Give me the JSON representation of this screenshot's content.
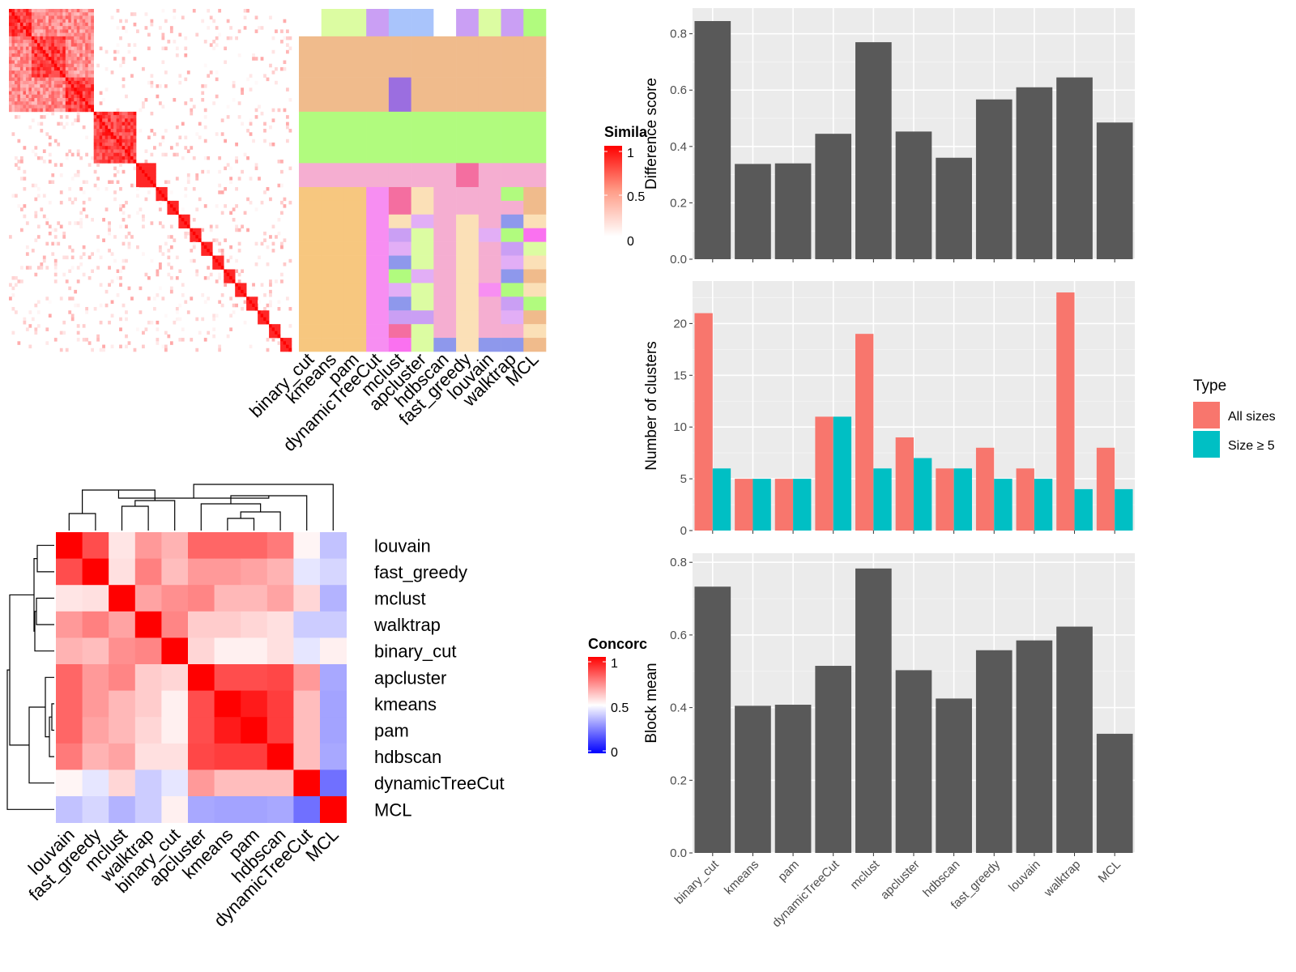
{
  "methods": [
    "binary_cut",
    "kmeans",
    "pam",
    "dynamicTreeCut",
    "mclust",
    "apcluster",
    "hdbscan",
    "fast_greedy",
    "louvain",
    "walktrap",
    "MCL"
  ],
  "similarity_heatmap": {
    "legend_title": "Simila",
    "legend_ticks": [
      "1",
      "0.5",
      "0"
    ],
    "colors": {
      "high": "#ff0000",
      "low": "#ffffff"
    },
    "column_labels": [
      "binary_cut",
      "kmeans",
      "pam",
      "dynamicTreeCut",
      "mclust",
      "apcluster",
      "hdbscan",
      "fast_greedy",
      "louvain",
      "walktrap",
      "MCL"
    ],
    "cluster_palette": [
      "#ffffff",
      "#f0bb8c",
      "#b1fb7e",
      "#f5aed1",
      "#f7c77f",
      "#dcfca2",
      "#ca9ff4",
      "#a9c4fb",
      "#f78ef2",
      "#9b6ee0",
      "#f46ea0",
      "#fbe0b7",
      "#e2aef6",
      "#8e98ec",
      "#fa71f0"
    ]
  },
  "concordance_heatmap": {
    "legend_title": "Concorc",
    "legend_ticks": [
      "1",
      "0.5",
      "0"
    ],
    "colors": {
      "high": "#ff0000",
      "mid": "#ffffff",
      "low": "#0000ff"
    },
    "row_labels": [
      "louvain",
      "fast_greedy",
      "mclust",
      "walktrap",
      "binary_cut",
      "apcluster",
      "kmeans",
      "pam",
      "hdbscan",
      "dynamicTreeCut",
      "MCL"
    ],
    "column_labels": [
      "louvain",
      "fast_greedy",
      "mclust",
      "walktrap",
      "binary_cut",
      "apcluster",
      "kmeans",
      "pam",
      "hdbscan",
      "dynamicTreeCut",
      "MCL"
    ],
    "matrix": [
      [
        1.0,
        0.85,
        0.55,
        0.7,
        0.65,
        0.8,
        0.8,
        0.8,
        0.76,
        0.52,
        0.38
      ],
      [
        0.85,
        1.0,
        0.56,
        0.75,
        0.63,
        0.7,
        0.7,
        0.68,
        0.65,
        0.45,
        0.42
      ],
      [
        0.55,
        0.56,
        1.0,
        0.68,
        0.72,
        0.74,
        0.64,
        0.64,
        0.68,
        0.58,
        0.35
      ],
      [
        0.7,
        0.75,
        0.68,
        1.0,
        0.74,
        0.6,
        0.6,
        0.58,
        0.56,
        0.4,
        0.4
      ],
      [
        0.65,
        0.63,
        0.72,
        0.74,
        1.0,
        0.58,
        0.53,
        0.53,
        0.56,
        0.45,
        0.53
      ],
      [
        0.8,
        0.7,
        0.74,
        0.6,
        0.58,
        1.0,
        0.85,
        0.85,
        0.86,
        0.7,
        0.33
      ],
      [
        0.8,
        0.7,
        0.64,
        0.6,
        0.53,
        0.85,
        1.0,
        0.95,
        0.88,
        0.63,
        0.32
      ],
      [
        0.8,
        0.68,
        0.64,
        0.58,
        0.53,
        0.85,
        0.95,
        1.0,
        0.88,
        0.63,
        0.32
      ],
      [
        0.76,
        0.65,
        0.68,
        0.56,
        0.56,
        0.86,
        0.88,
        0.88,
        1.0,
        0.63,
        0.33
      ],
      [
        0.52,
        0.45,
        0.58,
        0.4,
        0.45,
        0.7,
        0.63,
        0.63,
        0.63,
        1.0,
        0.22
      ],
      [
        0.38,
        0.42,
        0.35,
        0.4,
        0.53,
        0.33,
        0.32,
        0.32,
        0.33,
        0.22,
        1.0
      ]
    ]
  },
  "chart_data": [
    {
      "type": "bar",
      "categories": [
        "binary_cut",
        "kmeans",
        "pam",
        "dynamicTreeCut",
        "mclust",
        "apcluster",
        "hdbscan",
        "fast_greedy",
        "louvain",
        "walktrap",
        "MCL"
      ],
      "values": [
        0.845,
        0.338,
        0.34,
        0.445,
        0.77,
        0.453,
        0.36,
        0.567,
        0.61,
        0.645,
        0.485
      ],
      "ylabel": "Difference score",
      "ylim": [
        0,
        0.85
      ],
      "yticks": [
        "0.0",
        "0.2",
        "0.4",
        "0.6",
        "0.8"
      ],
      "bar_color": "#595959",
      "grid": true
    },
    {
      "type": "bar",
      "categories": [
        "binary_cut",
        "kmeans",
        "pam",
        "dynamicTreeCut",
        "mclust",
        "apcluster",
        "hdbscan",
        "fast_greedy",
        "louvain",
        "walktrap",
        "MCL"
      ],
      "series": [
        {
          "name": "All sizes",
          "values": [
            21,
            5,
            5,
            11,
            19,
            9,
            6,
            8,
            6,
            23,
            8
          ],
          "color": "#f8766d"
        },
        {
          "name": "Size ≥ 5",
          "values": [
            6,
            5,
            5,
            11,
            6,
            7,
            6,
            5,
            5,
            4,
            4
          ],
          "color": "#00bfc4"
        }
      ],
      "ylabel": "Number of clusters",
      "ylim": [
        0,
        23.5
      ],
      "yticks": [
        "0",
        "5",
        "10",
        "15",
        "20"
      ],
      "legend_title": "Type",
      "legend_position": "right",
      "grid": true
    },
    {
      "type": "bar",
      "categories": [
        "binary_cut",
        "kmeans",
        "pam",
        "dynamicTreeCut",
        "mclust",
        "apcluster",
        "hdbscan",
        "fast_greedy",
        "louvain",
        "walktrap",
        "MCL"
      ],
      "values": [
        0.733,
        0.405,
        0.408,
        0.515,
        0.783,
        0.503,
        0.425,
        0.558,
        0.585,
        0.623,
        0.328
      ],
      "ylabel": "Block mean",
      "ylim": [
        0,
        0.8
      ],
      "yticks": [
        "0.0",
        "0.2",
        "0.4",
        "0.6",
        "0.8"
      ],
      "bar_color": "#595959",
      "grid": true
    }
  ]
}
